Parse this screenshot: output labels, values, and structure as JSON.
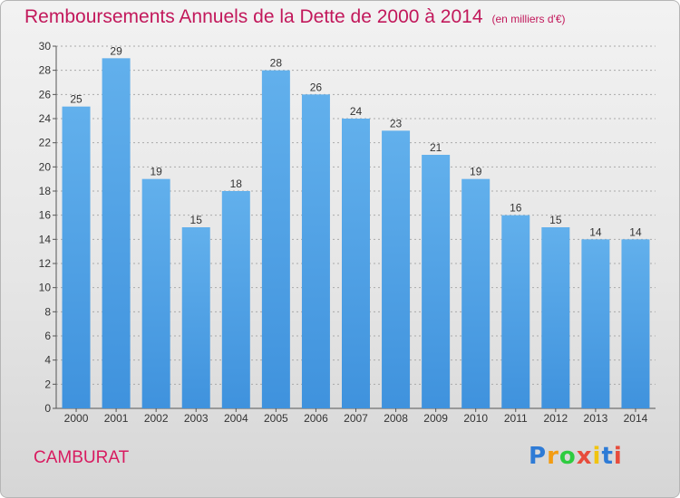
{
  "title": "Remboursements Annuels de la Dette de 2000 à 2014",
  "subtitle": "(en milliers d'€)",
  "commune": "CAMBURAT",
  "logo": {
    "text": "Proxiti",
    "letters": [
      "P",
      "r",
      "o",
      "x",
      "i",
      "t",
      "i"
    ],
    "colors": [
      "#2e7bd6",
      "#f39c12",
      "#2ecc40",
      "#e74c3c",
      "#f1c40f",
      "#2e7bd6",
      "#e74c3c"
    ]
  },
  "colors": {
    "bar": "#3f92dd",
    "bar_light": "#62b0ec",
    "title": "#c2185b",
    "axis": "#555555",
    "grid": "#aaaaaa"
  },
  "chart_data": {
    "type": "bar",
    "title": "Remboursements Annuels de la Dette de 2000 à 2014",
    "subtitle": "(en milliers d'€)",
    "categories": [
      "2000",
      "2001",
      "2002",
      "2003",
      "2004",
      "2005",
      "2006",
      "2007",
      "2008",
      "2009",
      "2010",
      "2011",
      "2012",
      "2013",
      "2014"
    ],
    "values": [
      25,
      29,
      19,
      15,
      18,
      28,
      26,
      24,
      23,
      21,
      19,
      16,
      15,
      14,
      14
    ],
    "ylim": [
      0,
      30
    ],
    "yticks": [
      0,
      2,
      4,
      6,
      8,
      10,
      12,
      14,
      16,
      18,
      20,
      22,
      24,
      26,
      28,
      30
    ],
    "grid": true,
    "xlabel": "",
    "ylabel": ""
  }
}
